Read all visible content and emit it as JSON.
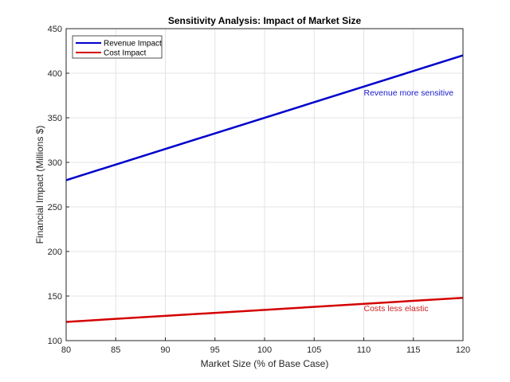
{
  "chart_data": {
    "type": "line",
    "title": "Sensitivity Analysis: Impact of Market Size",
    "xlabel": "Market Size (% of Base Case)",
    "ylabel": "Financial Impact (Millions $)",
    "xlim": [
      80,
      120
    ],
    "ylim": [
      100,
      450
    ],
    "xticks": [
      80,
      85,
      90,
      95,
      100,
      105,
      110,
      115,
      120
    ],
    "yticks": [
      100,
      150,
      200,
      250,
      300,
      350,
      400,
      450
    ],
    "grid": true,
    "legend_position": "top-left",
    "series": [
      {
        "name": "Revenue Impact",
        "color": "#0000cc",
        "x": [
          80,
          120
        ],
        "y": [
          280,
          420
        ]
      },
      {
        "name": "Cost Impact",
        "color": "#d40000",
        "x": [
          80,
          120
        ],
        "y": [
          121,
          148
        ]
      }
    ],
    "annotations": [
      {
        "text": "Revenue more sensitive",
        "x": 110,
        "y": 375,
        "color": "#1a1acc"
      },
      {
        "text": "Costs less elastic",
        "x": 110,
        "y": 133,
        "color": "#cc2222"
      }
    ]
  }
}
